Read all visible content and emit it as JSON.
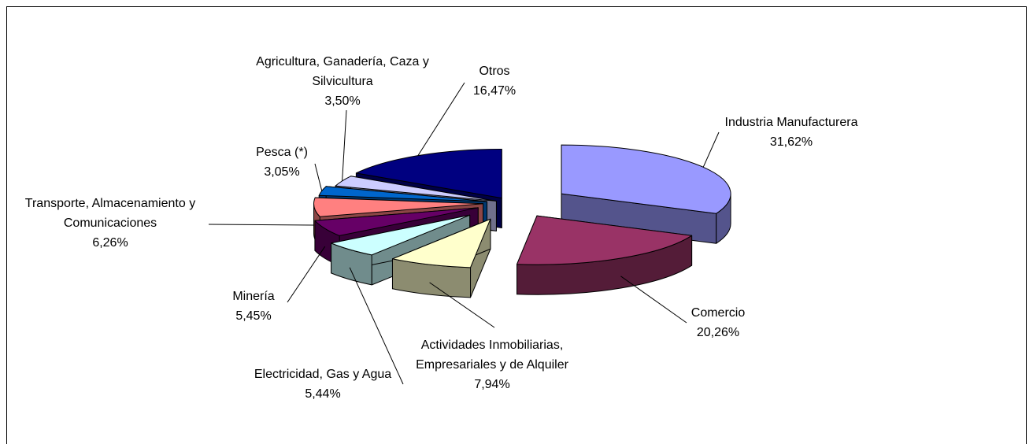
{
  "chart_data": {
    "type": "pie3d",
    "categories": [
      "Industria Manufacturera",
      "Comercio",
      "Actividades Inmobiliarias, Empresariales y de Alquiler",
      "Electricidad, Gas y Agua",
      "Minería",
      "Transporte, Almacenamiento y Comunicaciones",
      "Pesca (*)",
      "Agricultura, Ganadería, Caza y Silvicultura",
      "Otros"
    ],
    "values": [
      31.62,
      20.26,
      7.94,
      5.44,
      5.45,
      6.26,
      3.05,
      3.5,
      16.47
    ],
    "value_labels": [
      "31,62%",
      "20,26%",
      "7,94%",
      "5,44%",
      "5,45%",
      "6,26%",
      "3,05%",
      "3,50%",
      "16,47%"
    ],
    "colors": [
      "#9999ff",
      "#993366",
      "#ffffcc",
      "#ccffff",
      "#660066",
      "#ff8080",
      "#0066cc",
      "#ccccff",
      "#000080"
    ]
  }
}
